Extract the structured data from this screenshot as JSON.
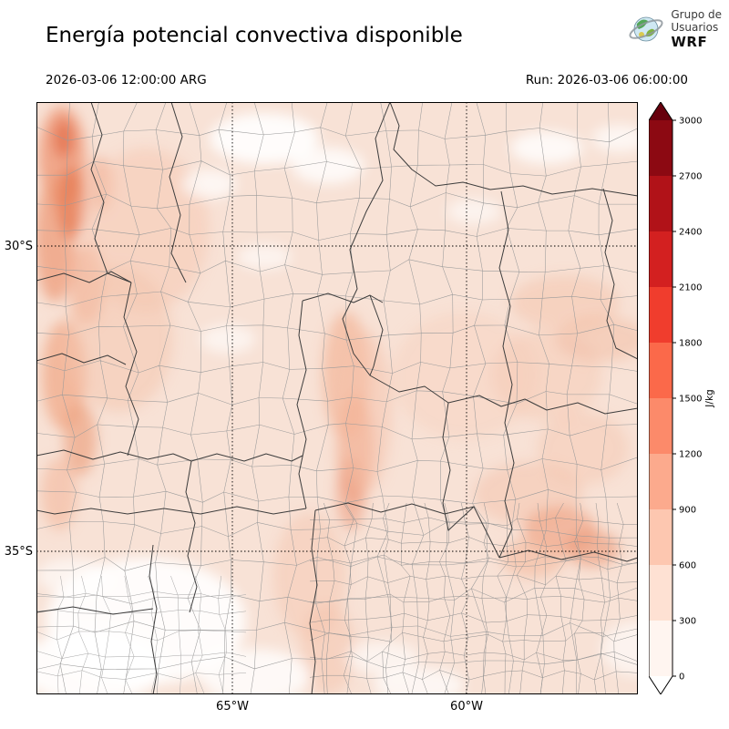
{
  "header": {
    "title": "Energía potencial convectiva disponible",
    "logo": {
      "line1": "Grupo de",
      "line2": "Usuarios",
      "line3": "WRF"
    }
  },
  "subheader": {
    "valid_time": "2026-03-06 12:00:00 ARG",
    "run_label": "Run: 2026-03-06 06:00:00"
  },
  "map": {
    "lat_ticks": [
      "30°S",
      "35°S"
    ],
    "lon_ticks": [
      "65°W",
      "60°W"
    ],
    "lat_positions": [
      0.243,
      0.758
    ],
    "lon_positions": [
      0.326,
      0.715
    ]
  },
  "colorbar": {
    "unit": "J/kg",
    "ticks": [
      "0",
      "300",
      "600",
      "900",
      "1200",
      "1500",
      "1800",
      "2100",
      "2400",
      "2700",
      "3000"
    ],
    "colors": [
      "#fff5f0",
      "#fee1d3",
      "#fdc7b0",
      "#fcaa8d",
      "#fc8a6a",
      "#fb694a",
      "#f03d2d",
      "#d32020",
      "#b11218",
      "#8c0912"
    ],
    "over_color": "#67000d",
    "under_color": "#ffffff",
    "max_fill": "#f8e2d6"
  }
}
